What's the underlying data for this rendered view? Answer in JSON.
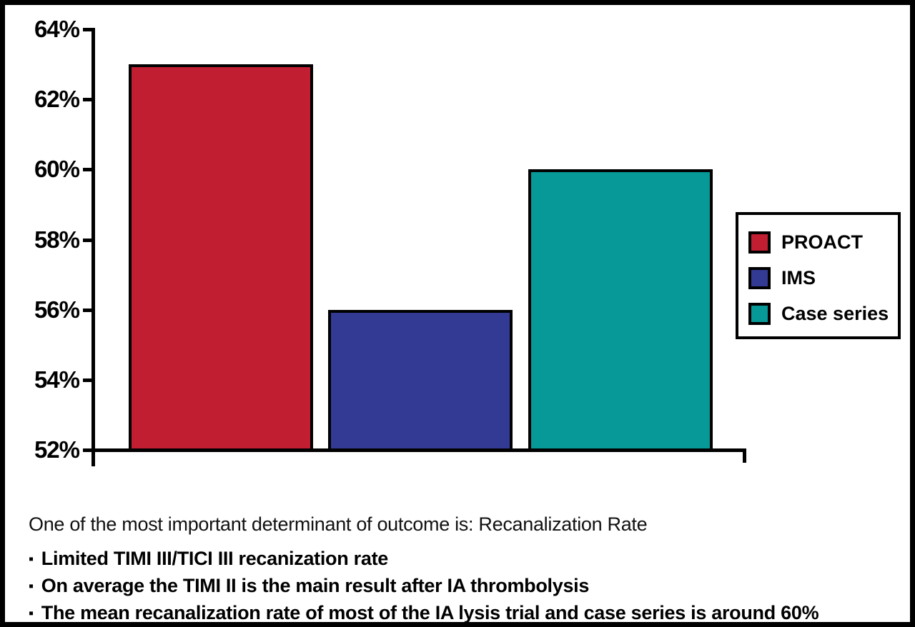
{
  "chart_data": {
    "type": "bar",
    "categories": [
      "PROACT",
      "IMS",
      "Case series"
    ],
    "values": [
      63,
      56,
      60
    ],
    "value_unit": "%",
    "title": "",
    "xlabel": "",
    "ylabel": "",
    "ylim": [
      52,
      64
    ],
    "yticks": [
      52,
      54,
      56,
      58,
      60,
      62,
      64
    ],
    "ytick_labels": [
      "52%",
      "54%",
      "56%",
      "58%",
      "60%",
      "62%",
      "64%"
    ],
    "grid": false,
    "legend_position": "right",
    "bar_colors": [
      "#c21e32",
      "#333a94",
      "#069997"
    ],
    "axis_color": "#000000"
  },
  "legend": {
    "items": [
      {
        "label": "PROACT",
        "color": "#c21e32"
      },
      {
        "label": "IMS",
        "color": "#333a94"
      },
      {
        "label": "Case series",
        "color": "#069997"
      }
    ]
  },
  "notes": {
    "heading": "One of the most important determinant of outcome is: Recanalization Rate",
    "bullet_marker": "▪",
    "bullets": [
      "Limited TIMI III/TICI III recanization rate",
      "On average the TIMI II is the main result after IA thrombolysis",
      "The mean recanalization rate of most of the IA lysis trial and case series is around 60%"
    ]
  }
}
